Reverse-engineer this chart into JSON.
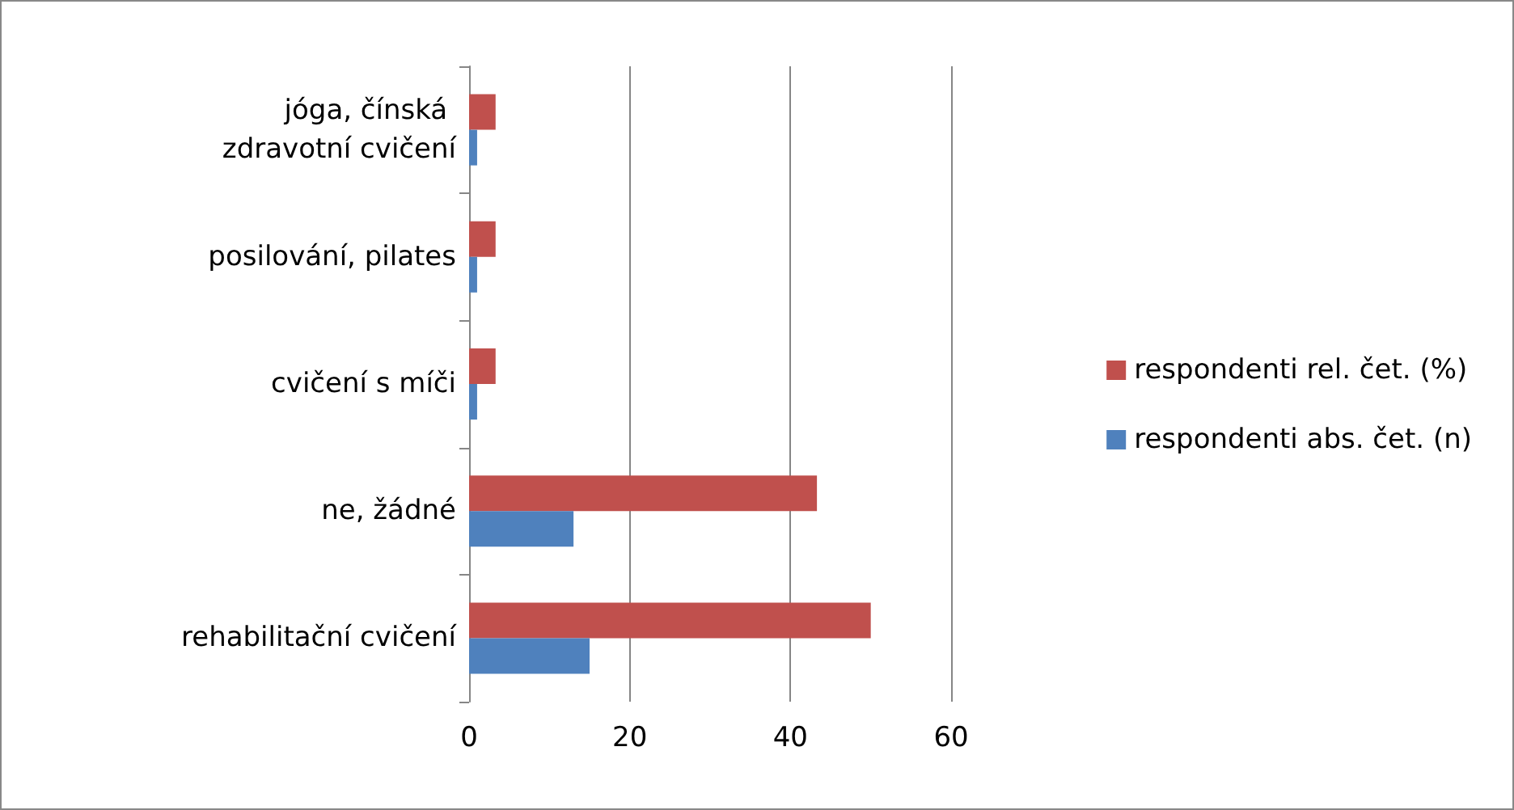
{
  "chart_data": {
    "type": "bar",
    "orientation": "horizontal",
    "categories": [
      "jóga, čínská zdravotní cvičení",
      "posilování, pilates",
      "cvičení s míči",
      "ne, žádné",
      "rehabilitační cvičení"
    ],
    "series": [
      {
        "name": "respondenti rel. čet. (%)",
        "color": "#c0504d",
        "values": [
          3.3,
          3.3,
          3.3,
          43.3,
          50
        ]
      },
      {
        "name": "respondenti abs. čet. (n)",
        "color": "#4f81bd",
        "values": [
          1,
          1,
          1,
          13,
          15
        ]
      }
    ],
    "xlim": [
      0,
      60
    ],
    "xticks": [
      0,
      20,
      40,
      60
    ],
    "grid": "x",
    "legend": "right"
  }
}
